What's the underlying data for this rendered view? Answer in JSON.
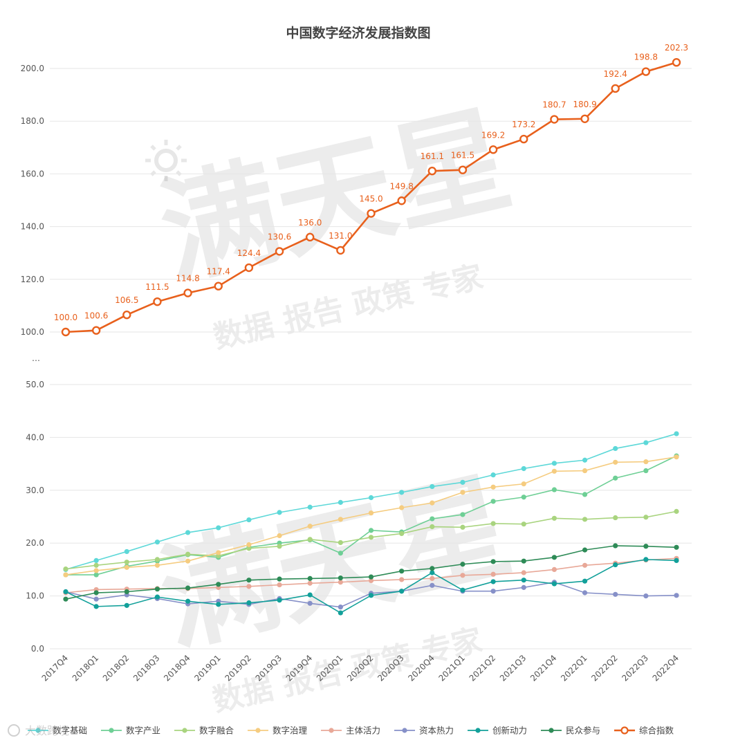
{
  "chart_data": {
    "type": "line",
    "title": "中国数字经济发展指数图",
    "break_marker": "…",
    "upper_axis": {
      "ticks": [
        "100.0",
        "120.0",
        "140.0",
        "160.0",
        "180.0",
        "200.0"
      ],
      "range": [
        100,
        200
      ]
    },
    "lower_axis": {
      "ticks": [
        "0.0",
        "10.0",
        "20.0",
        "30.0",
        "40.0",
        "50.0"
      ],
      "range": [
        0,
        50
      ]
    },
    "categories": [
      "2017Q4",
      "2018Q1",
      "2018Q2",
      "2018Q3",
      "2018Q4",
      "2019Q1",
      "2019Q2",
      "2019Q3",
      "2019Q4",
      "2020Q1",
      "2020Q2",
      "2020Q3",
      "2020Q4",
      "2021Q1",
      "2021Q2",
      "2021Q3",
      "2021Q4",
      "2022Q1",
      "2022Q2",
      "2022Q3",
      "2022Q4"
    ],
    "main_series": {
      "name": "综合指数",
      "color": "#e8601c",
      "values": [
        100.0,
        100.6,
        106.5,
        111.5,
        114.8,
        117.4,
        124.4,
        130.6,
        136.0,
        131.0,
        145.0,
        149.8,
        161.1,
        161.5,
        169.2,
        173.2,
        180.7,
        180.9,
        192.4,
        198.8,
        202.3
      ],
      "labels": [
        "100.0",
        "100.6",
        "106.5",
        "111.5",
        "114.8",
        "117.4",
        "124.4",
        "130.6",
        "136.0",
        "131.0",
        "145.0",
        "149.8",
        "161.1",
        "161.5",
        "169.2",
        "173.2",
        "180.7",
        "180.9",
        "192.4",
        "198.8",
        "202.3"
      ]
    },
    "series": [
      {
        "name": "数字基础",
        "color": "#5dd8d8",
        "values": [
          15.0,
          16.7,
          18.4,
          20.2,
          22.0,
          22.9,
          24.4,
          25.8,
          26.8,
          27.7,
          28.6,
          29.6,
          30.7,
          31.5,
          32.9,
          34.1,
          35.1,
          35.7,
          37.9,
          39.0,
          40.7
        ]
      },
      {
        "name": "数字产业",
        "color": "#6ecf95",
        "values": [
          14.0,
          14.0,
          15.6,
          16.6,
          17.8,
          17.3,
          19.2,
          20.0,
          20.6,
          18.1,
          22.4,
          22.1,
          24.6,
          25.4,
          27.9,
          28.7,
          30.1,
          29.2,
          32.3,
          33.7,
          36.5
        ]
      },
      {
        "name": "数字融合",
        "color": "#a9d47f",
        "values": [
          15.1,
          15.8,
          16.4,
          16.9,
          17.9,
          17.6,
          19.0,
          19.4,
          20.7,
          20.1,
          21.1,
          21.8,
          23.1,
          23.0,
          23.7,
          23.6,
          24.7,
          24.5,
          24.8,
          24.9,
          26.0
        ]
      },
      {
        "name": "数字治理",
        "color": "#f5cc80",
        "values": [
          14.0,
          14.8,
          15.4,
          15.8,
          16.6,
          18.2,
          19.7,
          21.4,
          23.2,
          24.5,
          25.7,
          26.7,
          27.6,
          29.6,
          30.6,
          31.2,
          33.6,
          33.7,
          35.3,
          35.4,
          36.3
        ]
      },
      {
        "name": "主体活力",
        "color": "#e8a898",
        "values": [
          10.6,
          11.2,
          11.3,
          11.4,
          11.4,
          11.6,
          11.8,
          12.1,
          12.4,
          12.6,
          12.9,
          13.1,
          13.3,
          13.9,
          14.1,
          14.4,
          15.0,
          15.8,
          16.2,
          16.8,
          17.1
        ]
      },
      {
        "name": "资本热力",
        "color": "#8690c8",
        "values": [
          10.8,
          9.4,
          10.2,
          9.5,
          8.5,
          9.0,
          8.4,
          9.5,
          8.6,
          7.9,
          10.5,
          10.9,
          12.0,
          10.9,
          10.9,
          11.6,
          12.6,
          10.6,
          10.3,
          10.0,
          10.1
        ]
      },
      {
        "name": "创新动力",
        "color": "#12a09a",
        "values": [
          10.8,
          8.0,
          8.2,
          9.8,
          9.0,
          8.4,
          8.7,
          9.2,
          10.2,
          6.8,
          10.1,
          10.9,
          14.4,
          11.1,
          12.7,
          13.0,
          12.3,
          12.8,
          15.9,
          16.9,
          16.7
        ]
      },
      {
        "name": "民众参与",
        "color": "#2e8b57",
        "values": [
          9.4,
          10.6,
          10.8,
          11.3,
          11.5,
          12.2,
          13.0,
          13.2,
          13.3,
          13.4,
          13.6,
          14.7,
          15.2,
          16.0,
          16.5,
          16.6,
          17.3,
          18.7,
          19.5,
          19.4,
          19.2
        ]
      }
    ],
    "legend": [
      "数字基础",
      "数字产业",
      "数字融合",
      "数字治理",
      "主体活力",
      "资本热力",
      "创新动力",
      "民众参与",
      "综合指数"
    ],
    "legend_position": "bottom",
    "grid": true
  },
  "watermark": {
    "brand": "满天星",
    "tagline": "数据 报告 政策 专家",
    "corner_logo": "大数跨境"
  }
}
